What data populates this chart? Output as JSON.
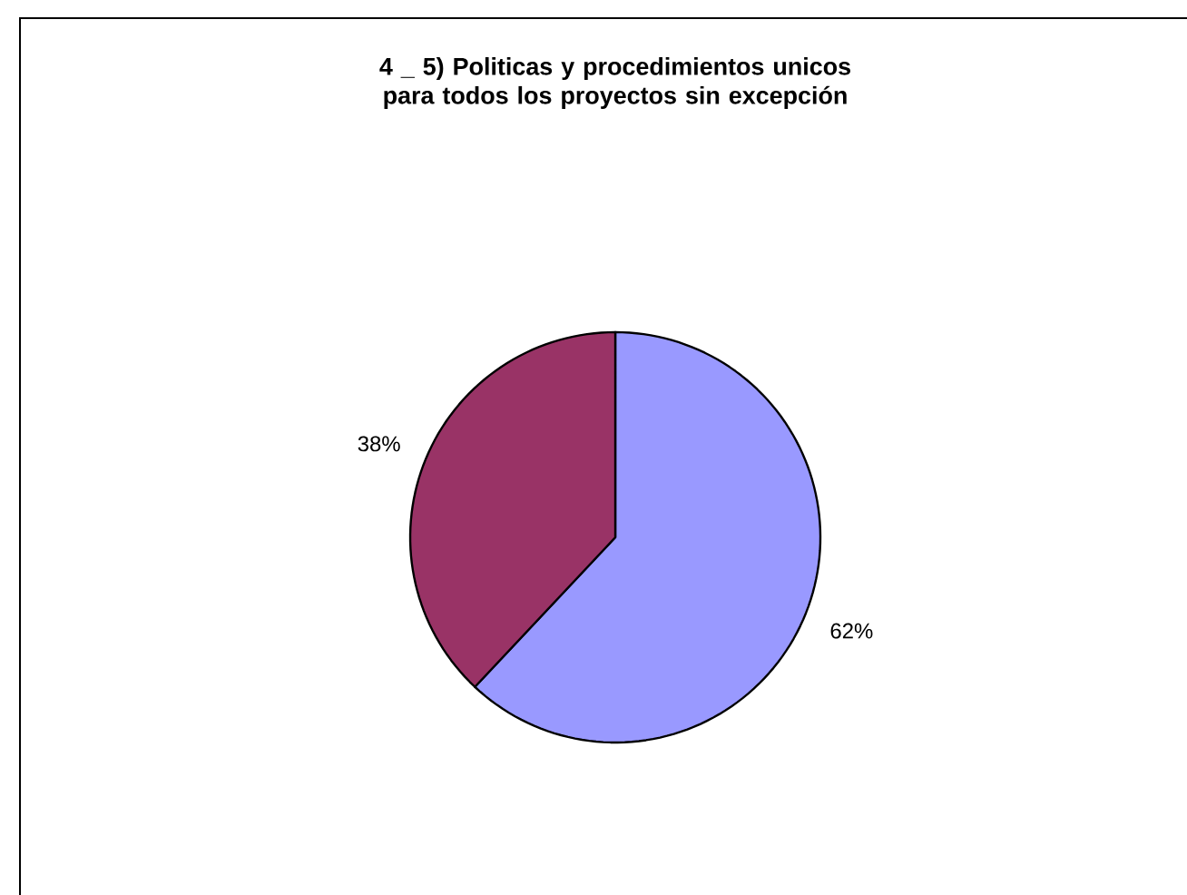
{
  "chart_data": {
    "type": "pie",
    "title": "4 _ 5) Politicas y procedimientos unicos para todos los proyectos sin excepción",
    "categories": [
      null,
      null
    ],
    "values": [
      62,
      38
    ],
    "colors": [
      "#9999ff",
      "#993366"
    ],
    "value_labels": [
      "62%",
      "38%"
    ]
  }
}
